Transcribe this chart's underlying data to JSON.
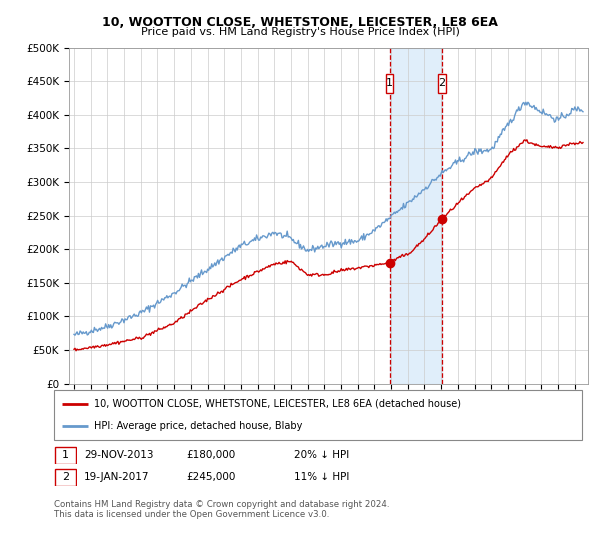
{
  "title": "10, WOOTTON CLOSE, WHETSTONE, LEICESTER, LE8 6EA",
  "subtitle": "Price paid vs. HM Land Registry's House Price Index (HPI)",
  "ylim": [
    0,
    500000
  ],
  "yticks": [
    0,
    50000,
    100000,
    150000,
    200000,
    250000,
    300000,
    350000,
    400000,
    450000,
    500000
  ],
  "ytick_labels": [
    "£0",
    "£50K",
    "£100K",
    "£150K",
    "£200K",
    "£250K",
    "£300K",
    "£350K",
    "£400K",
    "£450K",
    "£500K"
  ],
  "xlim_start": 1994.7,
  "xlim_end": 2025.8,
  "xticks": [
    1995,
    1996,
    1997,
    1998,
    1999,
    2000,
    2001,
    2002,
    2003,
    2004,
    2005,
    2006,
    2007,
    2008,
    2009,
    2010,
    2011,
    2012,
    2013,
    2014,
    2015,
    2016,
    2017,
    2018,
    2019,
    2020,
    2021,
    2022,
    2023,
    2024,
    2025
  ],
  "transaction1_x": 2013.91,
  "transaction1_y": 180000,
  "transaction2_x": 2017.05,
  "transaction2_y": 245000,
  "legend_line1": "10, WOOTTON CLOSE, WHETSTONE, LEICESTER, LE8 6EA (detached house)",
  "legend_line2": "HPI: Average price, detached house, Blaby",
  "footer": "Contains HM Land Registry data © Crown copyright and database right 2024.\nThis data is licensed under the Open Government Licence v3.0.",
  "line_color_red": "#cc0000",
  "line_color_blue": "#6699cc",
  "background_color": "#ffffff",
  "grid_color": "#cccccc",
  "shade_color": "#cce4f7",
  "dashed_color": "#cc0000",
  "annot1_date": "29-NOV-2013",
  "annot1_price": "£180,000",
  "annot1_pct": "20% ↓ HPI",
  "annot2_date": "19-JAN-2017",
  "annot2_price": "£245,000",
  "annot2_pct": "11% ↓ HPI"
}
